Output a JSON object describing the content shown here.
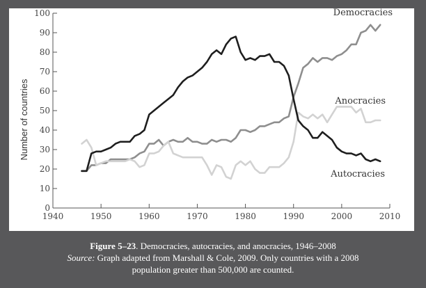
{
  "caption": {
    "figure_label": "Figure 5–23",
    "figure_title": ". Democracies, autocracies, and anocracies, 1946–2008",
    "source_label": "Source:",
    "source_text": " Graph adapted from Marshall & Cole, 2009. Only countries with a 2008",
    "source_text_2": "population greater than 500,000 are counted."
  },
  "chart_data": {
    "type": "line",
    "ylabel": "Number of countries",
    "xlabel": "",
    "xlim": [
      1940,
      2010
    ],
    "ylim": [
      0,
      100
    ],
    "x_ticks": [
      1940,
      1950,
      1960,
      1970,
      1980,
      1990,
      2000,
      2010
    ],
    "y_ticks": [
      0,
      10,
      20,
      30,
      40,
      50,
      60,
      70,
      80,
      90,
      100
    ],
    "grid": false,
    "x": [
      1946,
      1947,
      1948,
      1949,
      1950,
      1951,
      1952,
      1953,
      1954,
      1955,
      1956,
      1957,
      1958,
      1959,
      1960,
      1961,
      1962,
      1963,
      1964,
      1965,
      1966,
      1967,
      1968,
      1969,
      1970,
      1971,
      1972,
      1973,
      1974,
      1975,
      1976,
      1977,
      1978,
      1979,
      1980,
      1981,
      1982,
      1983,
      1984,
      1985,
      1986,
      1987,
      1988,
      1989,
      1990,
      1991,
      1992,
      1993,
      1994,
      1995,
      1996,
      1997,
      1998,
      1999,
      2000,
      2001,
      2002,
      2003,
      2004,
      2005,
      2006,
      2007,
      2008
    ],
    "series": [
      {
        "name": "Democracies",
        "color": "#8e8e8e",
        "values": [
          19,
          19,
          22,
          22,
          23,
          23,
          25,
          25,
          25,
          25,
          25,
          26,
          28,
          29,
          33,
          33,
          35,
          32,
          34,
          35,
          34,
          34,
          36,
          34,
          34,
          33,
          33,
          35,
          34,
          35,
          35,
          34,
          36,
          40,
          40,
          39,
          40,
          42,
          42,
          43,
          44,
          44,
          46,
          47,
          57,
          64,
          72,
          74,
          77,
          75,
          77,
          77,
          76,
          78,
          79,
          81,
          84,
          84,
          90,
          91,
          94,
          91,
          94
        ]
      },
      {
        "name": "Anocracies",
        "color": "#d2d2d2",
        "values": [
          33,
          35,
          31,
          22,
          23,
          24,
          24,
          24,
          24,
          24,
          25,
          24,
          21,
          22,
          28,
          28,
          29,
          32,
          34,
          28,
          27,
          26,
          26,
          26,
          26,
          26,
          22,
          17,
          22,
          21,
          16,
          15,
          22,
          24,
          22,
          24,
          20,
          18,
          18,
          21,
          21,
          21,
          23,
          26,
          34,
          49,
          47,
          46,
          48,
          46,
          48,
          44,
          48,
          52,
          52,
          52,
          52,
          49,
          51,
          44,
          44,
          45,
          45
        ]
      },
      {
        "name": "Autocracies",
        "color": "#1e1e1e",
        "values": [
          19,
          19,
          28,
          29,
          29,
          30,
          31,
          33,
          34,
          34,
          34,
          37,
          38,
          40,
          48,
          50,
          52,
          54,
          56,
          58,
          62,
          65,
          67,
          68,
          70,
          72,
          75,
          79,
          81,
          79,
          84,
          87,
          88,
          80,
          76,
          77,
          76,
          78,
          78,
          79,
          75,
          75,
          73,
          68,
          56,
          45,
          42,
          40,
          36,
          36,
          39,
          37,
          35,
          31,
          29,
          28,
          28,
          27,
          28,
          25,
          24,
          25,
          24
        ]
      }
    ]
  }
}
